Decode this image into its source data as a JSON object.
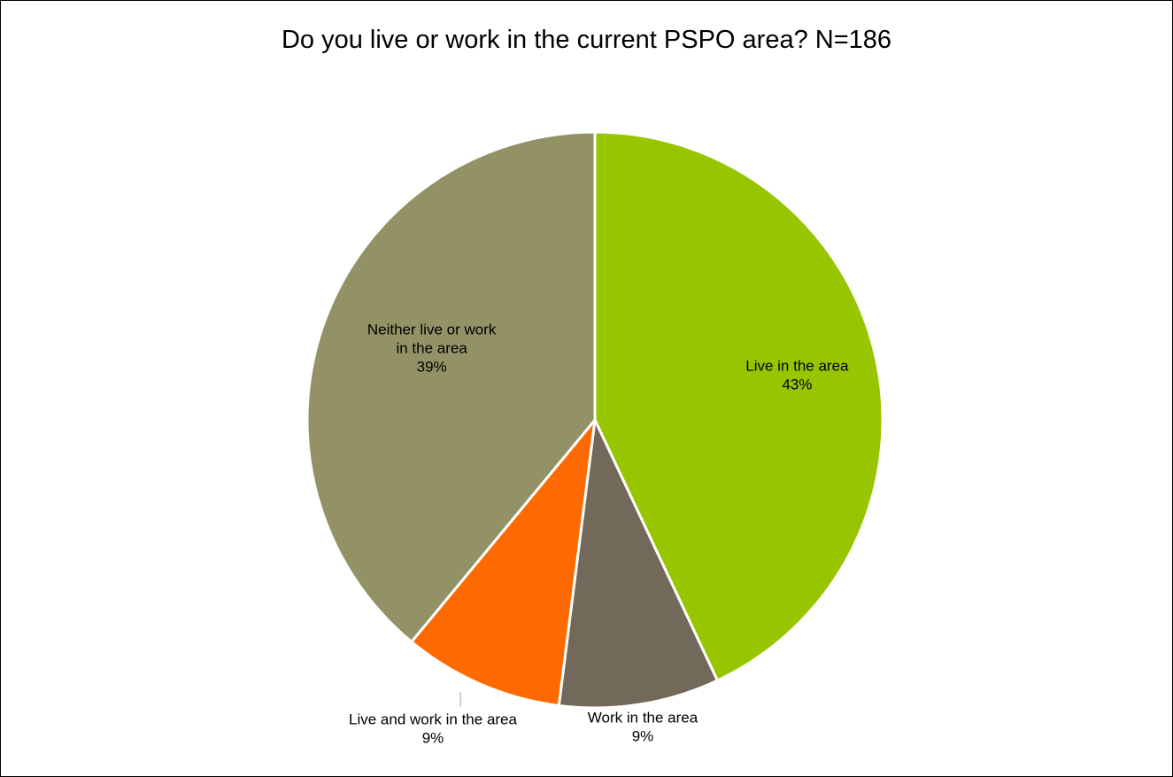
{
  "chart_data": {
    "type": "pie",
    "title": "Do you live or work in the current PSPO area? N=186",
    "start_angle_deg": 0,
    "direction": "clockwise",
    "slices": [
      {
        "name": "Live in the area",
        "value": 43,
        "label": "43%",
        "color": "#97c600"
      },
      {
        "name": "Work in the area",
        "value": 9,
        "label": "9%",
        "color": "#73695b"
      },
      {
        "name": "Live and work in the area",
        "value": 9,
        "label": "9%",
        "color": "#ff6a00"
      },
      {
        "name": "Neither live or work in the area",
        "value": 39,
        "label": "39%",
        "color": "#929266"
      }
    ]
  }
}
